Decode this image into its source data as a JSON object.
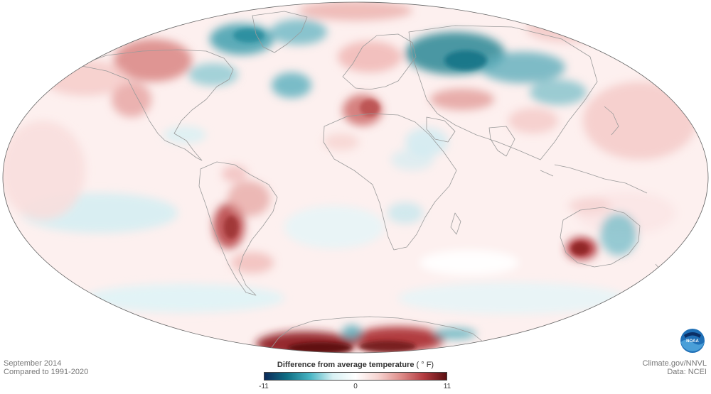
{
  "caption": {
    "date": "September 2014",
    "baseline": "Compared to 1991-2020"
  },
  "credits": {
    "site": "Climate.gov/NNVL",
    "data": "Data: NCEI"
  },
  "legend": {
    "title": "Difference from average temperature",
    "unit": "( ° F)",
    "min": "-11",
    "mid": "0",
    "max": "11",
    "colors": [
      "#0c2b5a",
      "#0f6f84",
      "#48b5c4",
      "#d8f1f4",
      "#ffffff",
      "#f6d3d0",
      "#de8d8a",
      "#b33b40",
      "#5b0f12"
    ]
  },
  "logo": {
    "text": "NOAA",
    "icon": "noaa-logo-icon"
  },
  "map": {
    "projection": "mollweide",
    "land_outline_color": "#9a9a9a",
    "globe_outline_color": "#666666"
  }
}
